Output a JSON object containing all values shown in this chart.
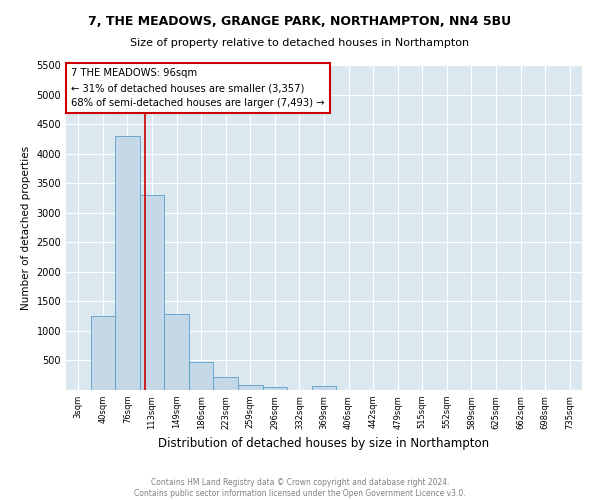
{
  "title": "7, THE MEADOWS, GRANGE PARK, NORTHAMPTON, NN4 5BU",
  "subtitle": "Size of property relative to detached houses in Northampton",
  "xlabel": "Distribution of detached houses by size in Northampton",
  "ylabel": "Number of detached properties",
  "categories": [
    "3sqm",
    "40sqm",
    "76sqm",
    "113sqm",
    "149sqm",
    "186sqm",
    "223sqm",
    "259sqm",
    "296sqm",
    "332sqm",
    "369sqm",
    "406sqm",
    "442sqm",
    "479sqm",
    "515sqm",
    "552sqm",
    "589sqm",
    "625sqm",
    "662sqm",
    "698sqm",
    "735sqm"
  ],
  "values": [
    0,
    1250,
    4300,
    3300,
    1280,
    480,
    220,
    90,
    55,
    0,
    60,
    0,
    0,
    0,
    0,
    0,
    0,
    0,
    0,
    0,
    0
  ],
  "bar_color": "#c5d8e8",
  "bar_edge_color": "#5a9ec9",
  "vline_x": 2.73,
  "vline_color": "#cc0000",
  "annotation_text": "7 THE MEADOWS: 96sqm\n← 31% of detached houses are smaller (3,357)\n68% of semi-detached houses are larger (7,493) →",
  "annotation_box_color": "#ffffff",
  "annotation_box_edge": "#cc0000",
  "ylim": [
    0,
    5500
  ],
  "yticks": [
    0,
    500,
    1000,
    1500,
    2000,
    2500,
    3000,
    3500,
    4000,
    4500,
    5000,
    5500
  ],
  "background_color": "#dce8f0",
  "footer": "Contains HM Land Registry data © Crown copyright and database right 2024.\nContains public sector information licensed under the Open Government Licence v3.0.",
  "title_fontsize": 9,
  "subtitle_fontsize": 8,
  "footer_fontsize": 5.5
}
